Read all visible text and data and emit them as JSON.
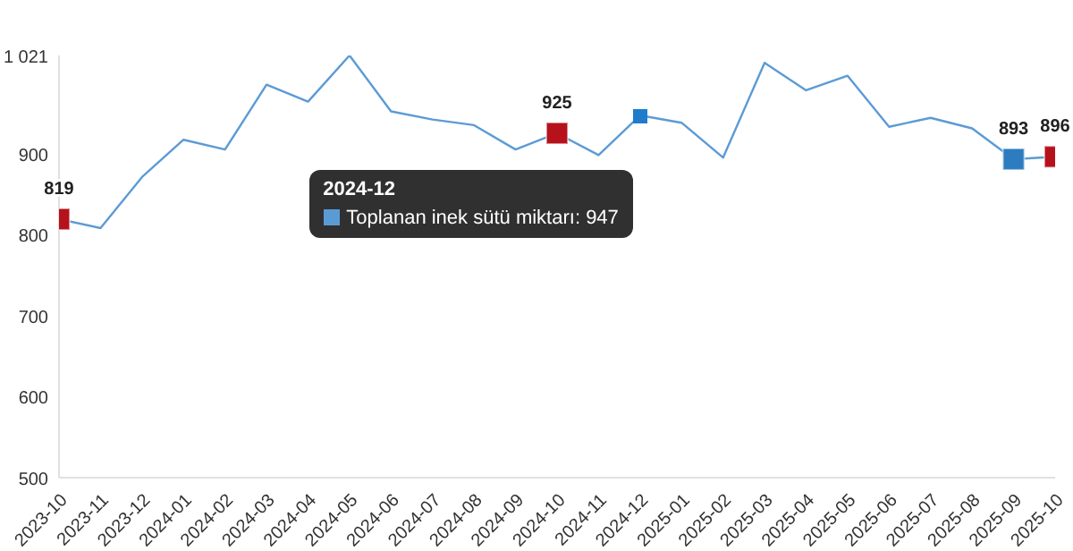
{
  "chart_data": {
    "type": "line",
    "categories": [
      "2023-10",
      "2023-11",
      "2023-12",
      "2024-01",
      "2024-02",
      "2024-03",
      "2024-04",
      "2024-05",
      "2024-06",
      "2024-07",
      "2024-08",
      "2024-09",
      "2024-10",
      "2024-11",
      "2024-12",
      "2025-01",
      "2025-02",
      "2025-03",
      "2025-04",
      "2025-05",
      "2025-06",
      "2025-07",
      "2025-08",
      "2025-09",
      "2025-10"
    ],
    "series": [
      {
        "name": "Toplanan inek sütü miktarı",
        "color": "#5b9bd5",
        "values": [
          819,
          808,
          871,
          917,
          905,
          985,
          964,
          1021,
          952,
          942,
          935,
          905,
          925,
          898,
          947,
          938,
          895,
          1012,
          978,
          996,
          933,
          944,
          931,
          893,
          896
        ],
        "colors": [
          "#b5121b",
          null,
          null,
          null,
          null,
          null,
          null,
          null,
          null,
          null,
          null,
          null,
          "#b5121b",
          null,
          null,
          null,
          null,
          null,
          null,
          null,
          null,
          null,
          null,
          "#2e7cc0",
          "#b5121b"
        ],
        "value_labels": [
          "819",
          null,
          null,
          null,
          null,
          null,
          null,
          null,
          null,
          null,
          null,
          null,
          "925",
          null,
          null,
          null,
          null,
          null,
          null,
          null,
          null,
          null,
          null,
          "893",
          "896"
        ]
      }
    ],
    "ylim": [
      500,
      1021
    ],
    "yticks": [
      500,
      600,
      700,
      800,
      900,
      {
        "value": 1021,
        "label": "1 021"
      }
    ],
    "grid": false,
    "legend": "top",
    "legend_title": "2024-12",
    "annotations": [
      ": 947"
    ]
  }
}
